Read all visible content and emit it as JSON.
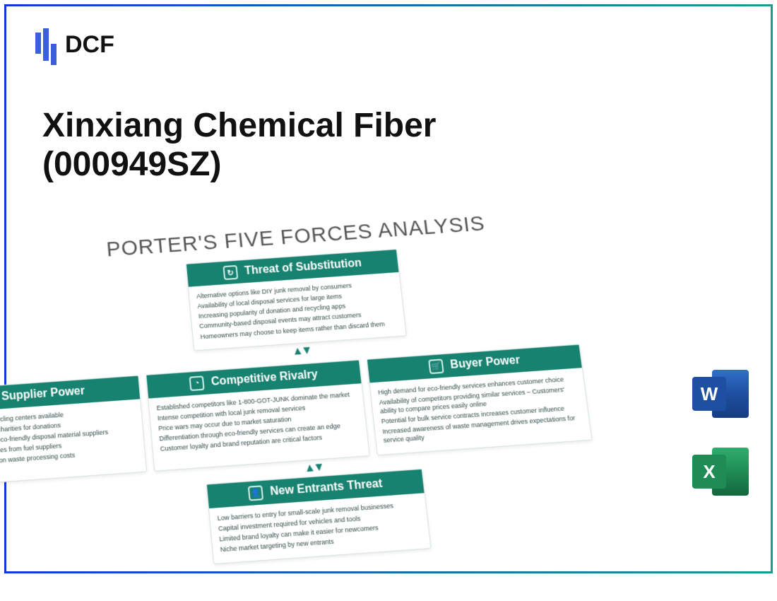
{
  "frame_gradient": [
    "#0b3bd4",
    "#1a9c8c"
  ],
  "logo": {
    "text": "DCF",
    "bar_color": "#3a5fd9"
  },
  "title": {
    "line1": "Xinxiang Chemical Fiber",
    "line2": "(000949SZ)",
    "fontsize": 48,
    "color": "#111111"
  },
  "diagram": {
    "heading": "PORTER'S FIVE FORCES ANALYSIS",
    "heading_color": "#555555",
    "card_header_bg": "#17826f",
    "card_header_fg": "#ffffff",
    "card_body_fg": "#2f4a46",
    "cards": {
      "substitution": {
        "title": "Threat of Substitution",
        "icon": "↻",
        "items": [
          "Alternative options like DIY junk removal by consumers",
          "Availability of local disposal services for large items",
          "Increasing popularity of donation and recycling apps",
          "Community-based disposal events may attract customers",
          "Homeowners may choose to keep items rather than discard them"
        ]
      },
      "supplier": {
        "title": "Supplier Power",
        "icon": "⮐",
        "items": [
          "Limited number of recycling centers available",
          "Dependence on local charities for donations",
          "Negotiation power of eco-friendly disposal material suppliers",
          "Potential price increases from fuel suppliers",
          "Impact of regulations on waste processing costs"
        ]
      },
      "rivalry": {
        "title": "Competitive Rivalry",
        "icon": "◔",
        "items": [
          "Established competitors like 1-800-GOT-JUNK dominate the market",
          "Intense competition with local junk removal services",
          "Price wars may occur due to market saturation",
          "Differentiation through eco-friendly services can create an edge",
          "Customer loyalty and brand reputation are critical factors"
        ]
      },
      "buyer": {
        "title": "Buyer Power",
        "icon": "🛒",
        "items": [
          "High demand for eco-friendly services enhances customer choice",
          "Availability of competitors providing similar services – Customers' ability to compare prices easily online",
          "Potential for bulk service contracts increases customer influence",
          "Increased awareness of waste management drives expectations for service quality"
        ]
      },
      "entrants": {
        "title": "New Entrants Threat",
        "icon": "👤",
        "items": [
          "Low barriers to entry for small-scale junk removal businesses",
          "Capital investment required for vehicles and tools",
          "Limited brand loyalty can make it easier for newcomers",
          "Niche market targeting by new entrants"
        ]
      }
    }
  },
  "app_icons": {
    "word": {
      "letter": "W",
      "name": "word-icon"
    },
    "excel": {
      "letter": "X",
      "name": "excel-icon"
    }
  }
}
